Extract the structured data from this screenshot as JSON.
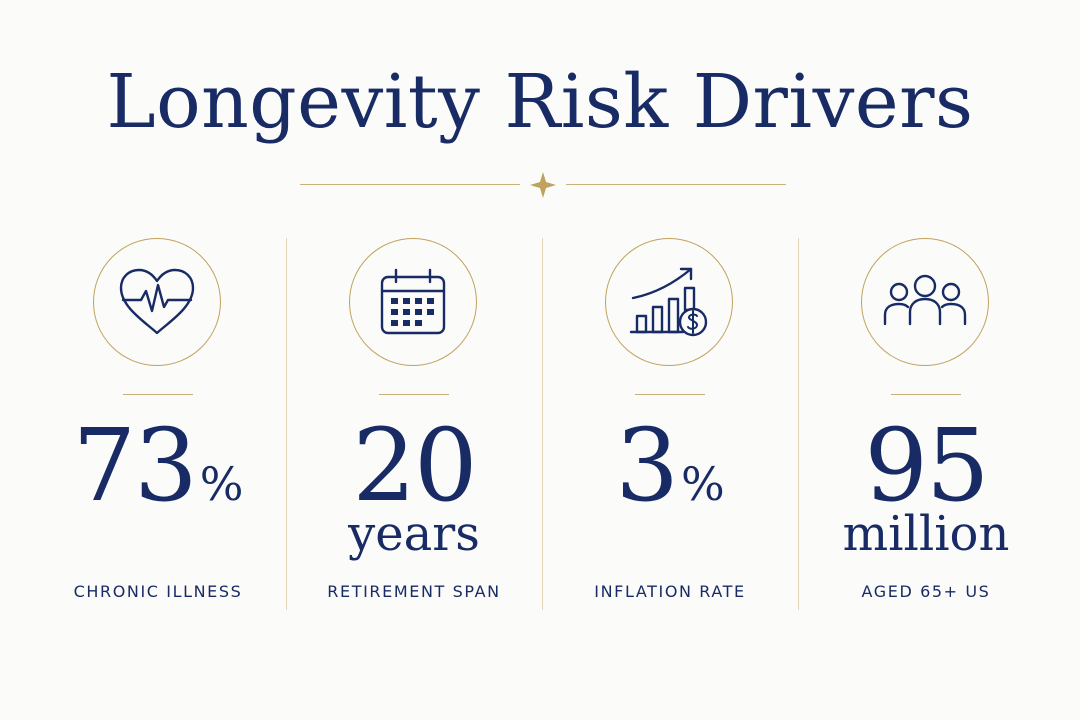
{
  "title": "Longevity Risk Drivers",
  "colors": {
    "navy": "#182b64",
    "gold": "#c0a15d",
    "background": "#fbfbfa"
  },
  "stats": [
    {
      "icon": "heart-pulse-icon",
      "value": "73",
      "unit": "%",
      "caption": "CHRONIC ILLNESS"
    },
    {
      "icon": "calendar-icon",
      "value": "20",
      "unit": "years",
      "caption": "RETIREMENT SPAN"
    },
    {
      "icon": "growth-chart-dollar-icon",
      "value": "3",
      "unit": "%",
      "caption": "INFLATION RATE"
    },
    {
      "icon": "people-group-icon",
      "value": "95",
      "unit": "million",
      "caption": "AGED 65+ US"
    }
  ]
}
